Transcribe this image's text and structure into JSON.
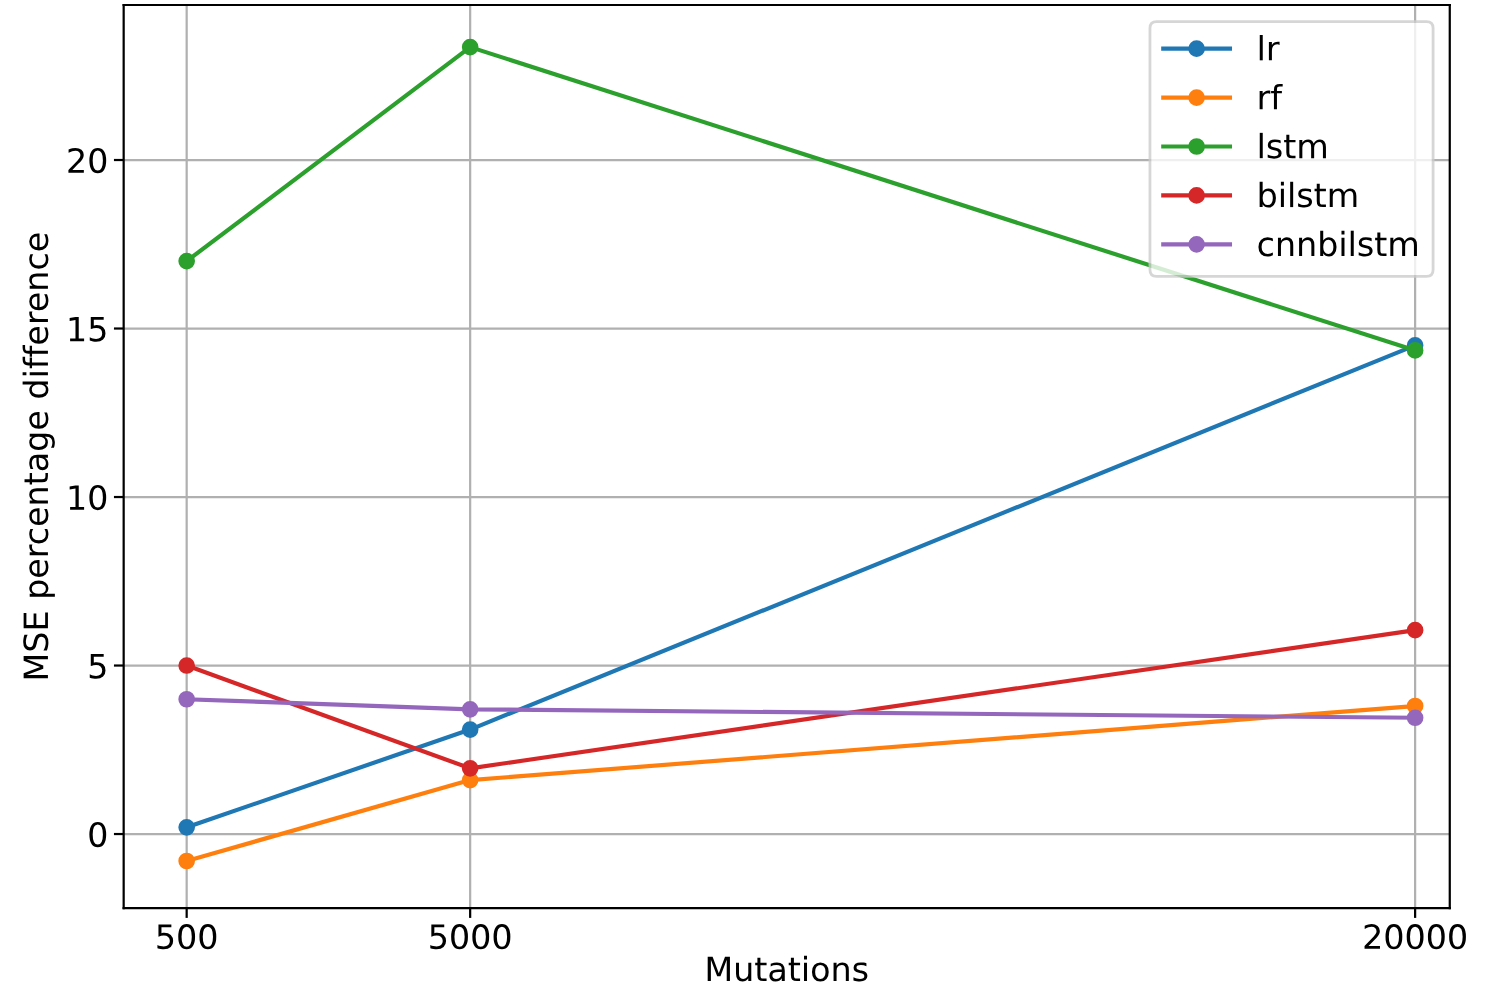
{
  "chart_data": {
    "type": "line",
    "xlabel": "Mutations",
    "ylabel": "MSE percentage difference",
    "x": [
      500,
      5000,
      20000
    ],
    "series": [
      {
        "name": "lr",
        "color": "#1f77b4",
        "values": [
          0.2,
          3.1,
          14.5
        ]
      },
      {
        "name": "rf",
        "color": "#ff7f0e",
        "values": [
          -0.8,
          1.6,
          3.8
        ]
      },
      {
        "name": "lstm",
        "color": "#2ca02c",
        "values": [
          17.0,
          23.35,
          14.35
        ]
      },
      {
        "name": "bilstm",
        "color": "#d62728",
        "values": [
          5.0,
          1.95,
          6.05
        ]
      },
      {
        "name": "cnnbilstm",
        "color": "#9467bd",
        "values": [
          4.0,
          3.7,
          3.45
        ]
      }
    ],
    "xlim": [
      -500,
      20550
    ],
    "xticks": [
      500,
      5000,
      20000
    ],
    "ylim": [
      -2.2,
      24.6
    ],
    "yticks": [
      0,
      5,
      10,
      15,
      20
    ],
    "grid": true,
    "legend": "top right",
    "marker": "circle",
    "line_style": "solid"
  }
}
